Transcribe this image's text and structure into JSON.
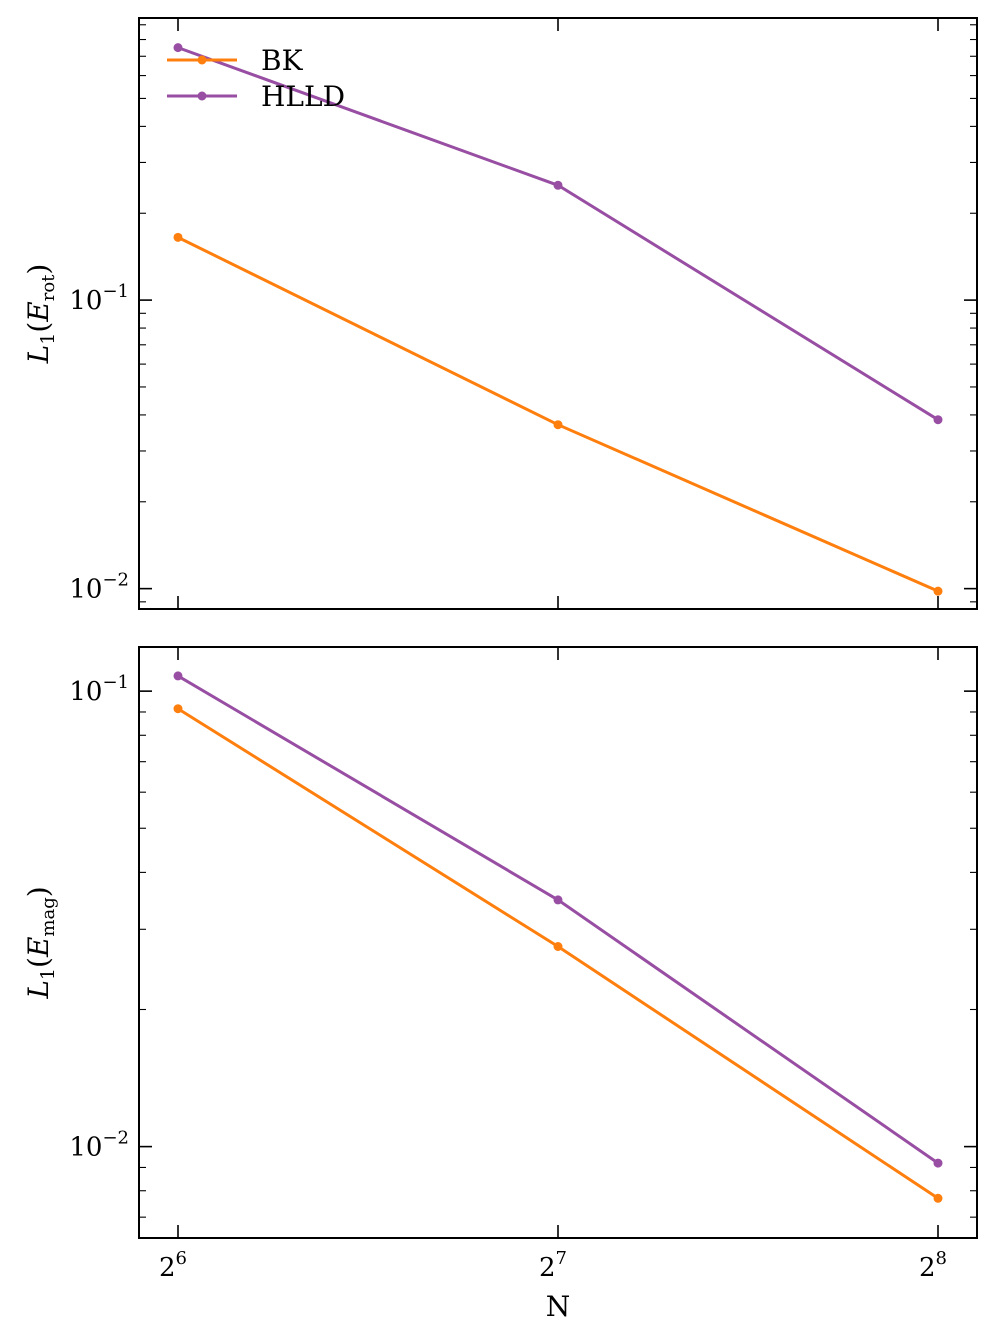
{
  "chart_data": [
    {
      "type": "line",
      "x": [
        64,
        128,
        256
      ],
      "x_ticks": [
        {
          "value": 64,
          "base": "2",
          "exp": "6"
        },
        {
          "value": 128,
          "base": "2",
          "exp": "7"
        },
        {
          "value": 256,
          "base": "2",
          "exp": "8"
        }
      ],
      "xlabel": "",
      "ylabel": {
        "main": "L",
        "sub1": "1",
        "open": "(E",
        "sub2": "rot",
        "close": ")"
      },
      "yscale": "log",
      "ylim": [
        0.0085,
        0.95
      ],
      "y_ticks": [
        {
          "value": 0.01,
          "base": "10",
          "exp": "−2"
        },
        {
          "value": 0.1,
          "base": "10",
          "exp": "−1"
        }
      ],
      "series": [
        {
          "name": "BK",
          "color": "#ff7f0e",
          "values": [
            0.165,
            0.037,
            0.0098
          ]
        },
        {
          "name": "HLLD",
          "color": "#984ea3",
          "values": [
            0.75,
            0.25,
            0.0385
          ]
        }
      ],
      "legend": "top-left",
      "grid": false
    },
    {
      "type": "line",
      "x": [
        64,
        128,
        256
      ],
      "x_ticks": [
        {
          "value": 64,
          "base": "2",
          "exp": "6"
        },
        {
          "value": 128,
          "base": "2",
          "exp": "7"
        },
        {
          "value": 256,
          "base": "2",
          "exp": "8"
        }
      ],
      "xlabel": "N",
      "ylabel": {
        "main": "L",
        "sub1": "1",
        "open": "(E",
        "sub2": "mag",
        "close": ")"
      },
      "yscale": "log",
      "ylim": [
        0.0063,
        0.125
      ],
      "y_ticks": [
        {
          "value": 0.01,
          "base": "10",
          "exp": "−2"
        },
        {
          "value": 0.1,
          "base": "10",
          "exp": "−1"
        }
      ],
      "series": [
        {
          "name": "BK",
          "color": "#ff7f0e",
          "values": [
            0.0915,
            0.0275,
            0.0077
          ]
        },
        {
          "name": "HLLD",
          "color": "#984ea3",
          "values": [
            0.108,
            0.0348,
            0.0092
          ]
        }
      ],
      "grid": false
    }
  ]
}
